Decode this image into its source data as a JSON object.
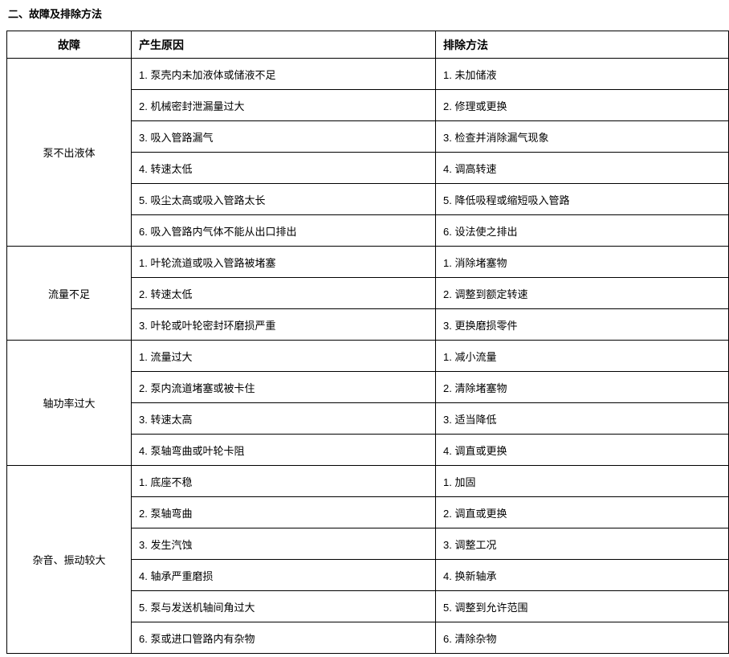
{
  "page": {
    "title": "二、故障及排除方法"
  },
  "table": {
    "headers": {
      "fault": "故障",
      "cause": "产生原因",
      "remedy": "排除方法"
    },
    "groups": [
      {
        "fault": "泵不出液体",
        "rows": [
          {
            "cause": "1. 泵壳内未加液体或储液不足",
            "remedy": "1. 未加储液"
          },
          {
            "cause": "2. 机械密封泄漏量过大",
            "remedy": "2. 修理或更换"
          },
          {
            "cause": "3. 吸入管路漏气",
            "remedy": "3. 检查并消除漏气现象"
          },
          {
            "cause": "4. 转速太低",
            "remedy": "4. 调高转速"
          },
          {
            "cause": "5. 吸尘太高或吸入管路太长",
            "remedy": "5. 降低吸程或缩短吸入管路"
          },
          {
            "cause": "6. 吸入管路内气体不能从出口排出",
            "remedy": "6. 设法使之排出"
          }
        ]
      },
      {
        "fault": "流量不足",
        "rows": [
          {
            "cause": "1. 叶轮流道或吸入管路被堵塞",
            "remedy": "1. 消除堵塞物"
          },
          {
            "cause": "2. 转速太低",
            "remedy": "2. 调整到额定转速"
          },
          {
            "cause": "3. 叶轮或叶轮密封环磨损严重",
            "remedy": "3. 更换磨损零件"
          }
        ]
      },
      {
        "fault": "轴功率过大",
        "rows": [
          {
            "cause": "1. 流量过大",
            "remedy": "1. 减小流量"
          },
          {
            "cause": "2. 泵内流道堵塞或被卡住",
            "remedy": "2. 清除堵塞物"
          },
          {
            "cause": "3. 转速太高",
            "remedy": "3. 适当降低"
          },
          {
            "cause": "4. 泵轴弯曲或叶轮卡阻",
            "remedy": "4. 调直或更换"
          }
        ]
      },
      {
        "fault": "杂音、振动较大",
        "rows": [
          {
            "cause": "1. 底座不稳",
            "remedy": "1. 加固"
          },
          {
            "cause": "2. 泵轴弯曲",
            "remedy": "2. 调直或更换"
          },
          {
            "cause": "3. 发生汽蚀",
            "remedy": "3. 调整工况"
          },
          {
            "cause": "4. 轴承严重磨损",
            "remedy": "4. 换新轴承"
          },
          {
            "cause": "5. 泵与发送机轴间角过大",
            "remedy": "5. 调整到允许范围"
          },
          {
            "cause": "6. 泵或进口管路内有杂物",
            "remedy": "6. 清除杂物"
          }
        ]
      }
    ]
  }
}
